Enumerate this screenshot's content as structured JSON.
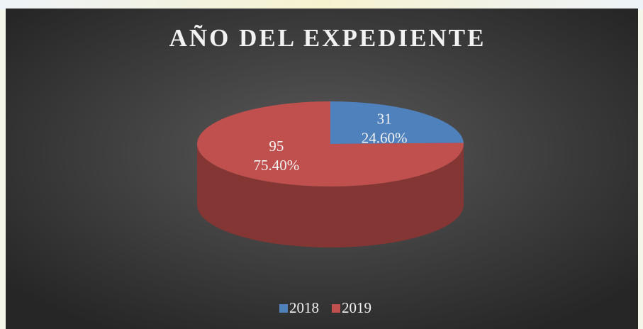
{
  "chart_data": {
    "type": "pie",
    "title": "AÑO DEL EXPEDIENTE",
    "categories": [
      "2018",
      "2019"
    ],
    "values": [
      31,
      95
    ],
    "percent_labels": [
      "24.60%",
      "75.40%"
    ],
    "colors": [
      "#4f81bd",
      "#c0504d"
    ],
    "legend": "bottom"
  }
}
